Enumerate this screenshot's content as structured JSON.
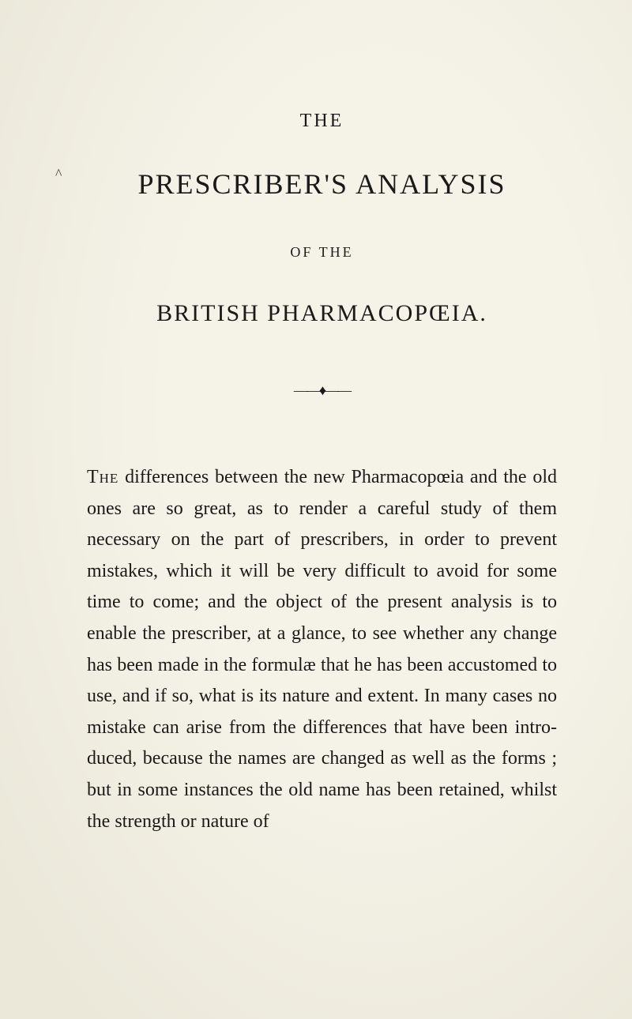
{
  "marginalia": {
    "caret": "^"
  },
  "header": {
    "the_top": "THE",
    "main_title": "PRESCRIBER'S ANALYSIS",
    "of_the": "OF THE",
    "subtitle": "BRITISH PHARMACOPŒIA."
  },
  "ornament": "——♦——",
  "body": {
    "first_word": "The",
    "rest": " differences between the new Pharmacopœia and the old ones are so great, as to render a care­ful study of them necessary on the part of pre­scribers, in order to prevent mistakes, which it will be very difficult to avoid for some time to come; and the object of the present analysis is to enable the prescriber, at a glance, to see whether any change has been made in the formulæ that he has been accustomed to use, and if so, what is its na­ture and extent. In many cases no mistake can arise from the differences that have been intro­duced, because the names are changed as well as the forms ; but in some instances the old name has been retained, whilst the strength or nature of"
  },
  "colors": {
    "page_background": "#f5f3e8",
    "text_color": "#1a1a1a",
    "vignette": "rgba(160,150,110,0.12)"
  },
  "typography": {
    "body_font_size": 24,
    "body_line_height": 1.65,
    "title_font_size": 36,
    "subtitle_font_size": 30,
    "small_caps_font_size": 24,
    "header_label_font_size": 18
  }
}
